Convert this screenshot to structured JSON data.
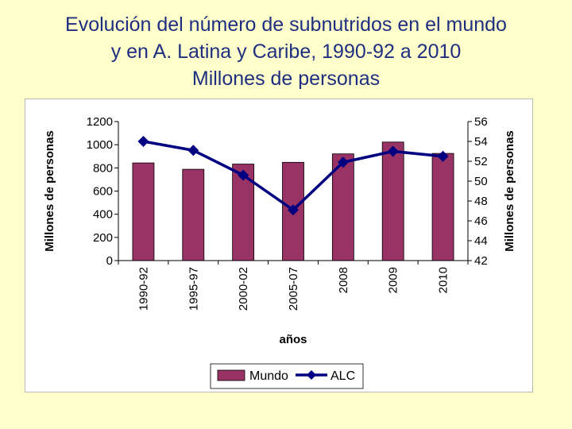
{
  "slide": {
    "title_lines": [
      "Evolución del número de subnutridos en el mundo",
      "y en A. Latina y Caribe, 1990-92 a 2010",
      "Millones de personas"
    ]
  },
  "colors": {
    "bar": "#993366",
    "line": "#000080",
    "background": "#ffffcc"
  },
  "chart_data": {
    "type": "bar",
    "categories": [
      "1990-92",
      "1995-97",
      "2000-02",
      "2005-07",
      "2008",
      "2009",
      "2010"
    ],
    "series": [
      {
        "name": "Mundo",
        "type": "bar",
        "axis": "left",
        "values": [
          843,
          788,
          833,
          848,
          921,
          1023,
          925
        ]
      },
      {
        "name": "ALC",
        "type": "line",
        "axis": "right",
        "values": [
          54.0,
          53.1,
          50.6,
          47.1,
          51.9,
          53.0,
          52.5
        ]
      }
    ],
    "xlabel": "años",
    "ylabel": "Millones de personas",
    "y2label": "Millones de personas",
    "ylim": [
      0,
      1200
    ],
    "y_ticks": [
      0,
      200,
      400,
      600,
      800,
      1000,
      1200
    ],
    "y2lim": [
      42,
      56
    ],
    "y2_ticks": [
      42,
      44,
      46,
      48,
      50,
      52,
      54,
      56
    ],
    "grid": false,
    "legend_position": "bottom",
    "legend": [
      "Mundo",
      "ALC"
    ]
  }
}
